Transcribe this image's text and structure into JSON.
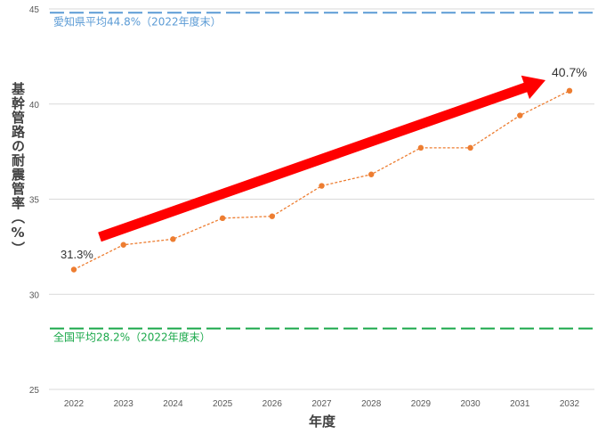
{
  "chart_data": {
    "type": "line",
    "title": "",
    "xlabel": "年度",
    "ylabel": "基幹管路の耐震管率（%）",
    "x": [
      "2022",
      "2023",
      "2024",
      "2025",
      "2026",
      "2027",
      "2028",
      "2029",
      "2030",
      "2031",
      "2032"
    ],
    "series": [
      {
        "values": [
          31.3,
          32.6,
          32.9,
          34.0,
          34.1,
          35.7,
          36.3,
          37.7,
          37.7,
          39.4,
          40.7
        ]
      }
    ],
    "yticks": [
      "25",
      "30",
      "35",
      "40",
      "45"
    ],
    "ylim": [
      25,
      45
    ],
    "grid": true,
    "reference_lines": [
      {
        "label": "愛知県平均44.8%（2022年度末）",
        "value": 44.8,
        "color": "#5b9bd5"
      },
      {
        "label": "全国平均28.2%（2022年度末）",
        "value": 28.2,
        "color": "#1aa84a"
      }
    ],
    "annotations": {
      "start": "31.3%",
      "end": "40.7%"
    },
    "colors": {
      "series": "#ed7d31",
      "arrow": "#ff0000"
    }
  }
}
